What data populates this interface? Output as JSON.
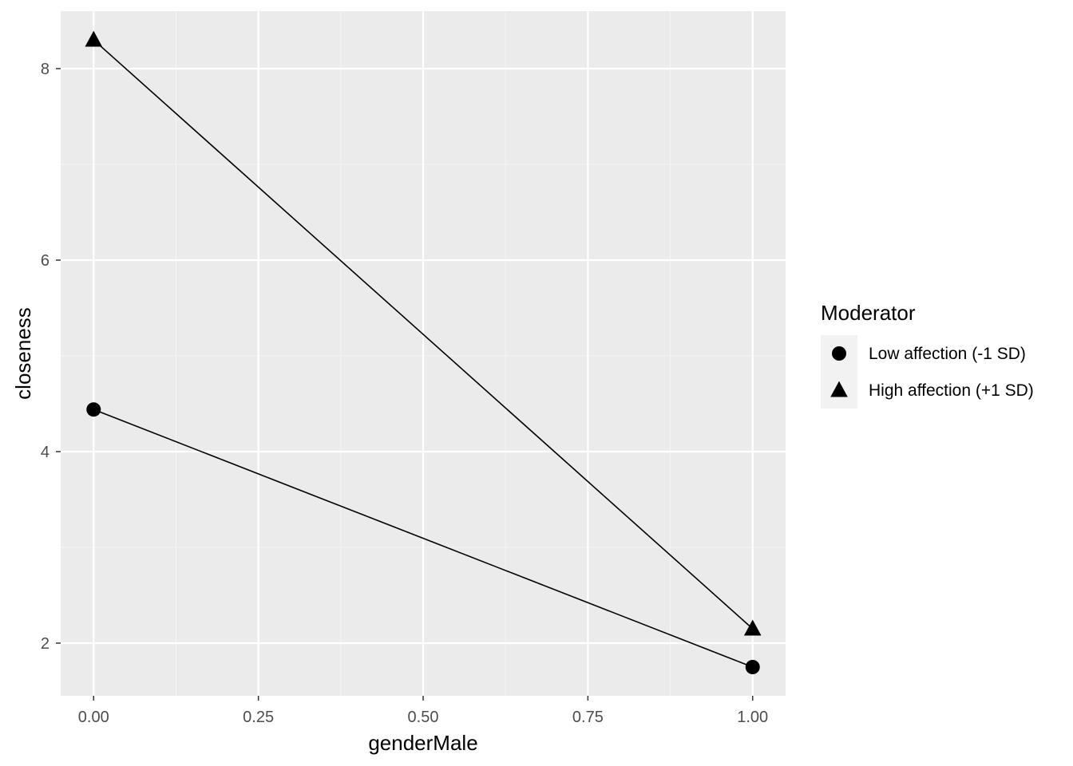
{
  "chart_data": {
    "type": "line",
    "xlabel": "genderMale",
    "ylabel": "closeness",
    "x": [
      0,
      1
    ],
    "xlim": [
      -0.05,
      1.05
    ],
    "ylim": [
      1.45,
      8.6
    ],
    "x_ticks": [
      0,
      0.25,
      0.5,
      0.75,
      1
    ],
    "x_tick_labels": [
      "0.00",
      "0.25",
      "0.50",
      "0.75",
      "1.00"
    ],
    "y_ticks": [
      2,
      4,
      6,
      8
    ],
    "y_tick_labels": [
      "2",
      "4",
      "6",
      "8"
    ],
    "grid": true,
    "legend": {
      "title": "Moderator",
      "placement": "right"
    },
    "series": [
      {
        "name": "Low affection (-1 SD)",
        "marker": "circle",
        "values": [
          4.44,
          1.75
        ]
      },
      {
        "name": "High affection (+1 SD)",
        "marker": "triangle",
        "values": [
          8.3,
          2.15
        ]
      }
    ],
    "colors": {
      "panel": "#ebebeb",
      "grid_major": "#ffffff",
      "grid_minor": "#f5f5f5",
      "series": "#000000",
      "tick_text": "#4d4d4d",
      "legend_key_bg": "#f2f2f2"
    }
  }
}
